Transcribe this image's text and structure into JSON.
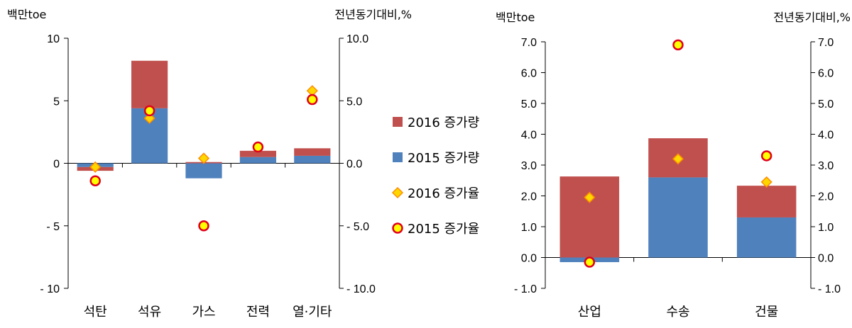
{
  "colors": {
    "amount_2016": "#C0504D",
    "amount_2015": "#4F81BD",
    "rate_2016_fill": "#FFD700",
    "rate_2016_stroke": "#FF8C00",
    "rate_2015_fill": "#FFFF00",
    "rate_2015_stroke": "#E0001A",
    "axis": "#000000"
  },
  "legend": {
    "placement": "right of left chart",
    "items": [
      "2016 증가량",
      "2015 증가량",
      "2016 증가율",
      "2015 증가율"
    ]
  },
  "chart_data": [
    {
      "type": "bar",
      "stacked": true,
      "left_axis_label": "백만toe",
      "right_axis_label": "전년동기대비,%",
      "categories": [
        "석탄",
        "석유",
        "가스",
        "전력",
        "열·기타"
      ],
      "ylim": [
        -10,
        10
      ],
      "y2lim": [
        -10.0,
        10.0
      ],
      "y_ticks": [
        "10",
        "5",
        "0",
        "- 5",
        "- 10"
      ],
      "y2_ticks": [
        "10.0",
        "5.0",
        "0.0",
        "- 5.0",
        "- 10.0"
      ],
      "grid": false,
      "series": [
        {
          "name": "2015 증가량",
          "kind": "bar",
          "values": [
            -0.3,
            4.4,
            -1.2,
            0.5,
            0.6
          ]
        },
        {
          "name": "2016 증가량",
          "kind": "bar",
          "values": [
            -0.3,
            3.8,
            0.1,
            0.5,
            0.6
          ]
        },
        {
          "name": "2016 증가율",
          "kind": "marker",
          "marker": "diamond",
          "values": [
            -0.3,
            3.6,
            0.4,
            1.3,
            5.8
          ]
        },
        {
          "name": "2015 증가율",
          "kind": "marker",
          "marker": "circle",
          "values": [
            -1.4,
            4.2,
            -5.0,
            1.3,
            5.1
          ]
        }
      ]
    },
    {
      "type": "bar",
      "stacked": true,
      "left_axis_label": "백만toe",
      "right_axis_label": "전년동기대비,%",
      "categories": [
        "산업",
        "수송",
        "건물"
      ],
      "ylim": [
        -1.0,
        7.0
      ],
      "y2lim": [
        -1.0,
        7.0
      ],
      "y_ticks": [
        "7.0",
        "6.0",
        "5.0",
        "4.0",
        "3.0",
        "2.0",
        "1.0",
        "0.0",
        "- 1.0"
      ],
      "y2_ticks": [
        "7.0",
        "6.0",
        "5.0",
        "4.0",
        "3.0",
        "2.0",
        "1.0",
        "0.0",
        "- 1.0"
      ],
      "grid": false,
      "series": [
        {
          "name": "2015 증가량",
          "kind": "bar",
          "values": [
            -0.15,
            2.6,
            1.3
          ]
        },
        {
          "name": "2016 증가량",
          "kind": "bar",
          "values": [
            2.63,
            1.27,
            1.03
          ]
        },
        {
          "name": "2016 증가율",
          "kind": "marker",
          "marker": "diamond",
          "values": [
            1.95,
            3.2,
            2.45
          ]
        },
        {
          "name": "2015 증가율",
          "kind": "marker",
          "marker": "circle",
          "values": [
            -0.15,
            6.9,
            3.3
          ]
        }
      ]
    }
  ]
}
